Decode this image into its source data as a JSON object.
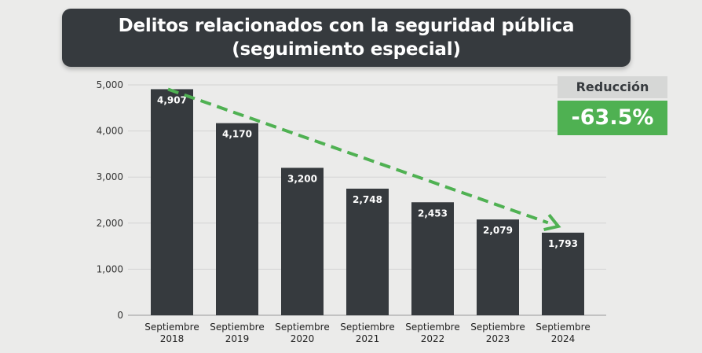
{
  "title": {
    "line1": "Delitos relacionados con la seguridad pública",
    "line2": "(seguimiento especial)"
  },
  "reduction": {
    "label": "Reducción",
    "value": "-63.5%"
  },
  "colors": {
    "background": "#ebebea",
    "bar": "#363a3e",
    "title_bg": "#363a3e",
    "trend_arrow": "#4fb152",
    "reduction_bg": "#4fb152",
    "reduction_label_bg": "#d6d7d6"
  },
  "chart_data": {
    "type": "bar",
    "categories": [
      [
        "Septiembre",
        "2018"
      ],
      [
        "Septiembre",
        "2019"
      ],
      [
        "Septiembre",
        "2020"
      ],
      [
        "Septiembre",
        "2021"
      ],
      [
        "Septiembre",
        "2022"
      ],
      [
        "Septiembre",
        "2023"
      ],
      [
        "Septiembre",
        "2024"
      ]
    ],
    "values": [
      4907,
      4170,
      3200,
      2748,
      2453,
      2079,
      1793
    ],
    "value_labels": [
      "4,907",
      "4,170",
      "3,200",
      "2,748",
      "2,453",
      "2,079",
      "1,793"
    ],
    "yticks": [
      0,
      1000,
      2000,
      3000,
      4000,
      5000
    ],
    "ytick_labels": [
      "0",
      "1,000",
      "2,000",
      "3,000",
      "4,000",
      "5,000"
    ],
    "ylim": [
      0,
      5000
    ],
    "grid": true,
    "trend_arrow": {
      "from_value": 4907,
      "to_value": 1793,
      "style": "dashed"
    }
  }
}
